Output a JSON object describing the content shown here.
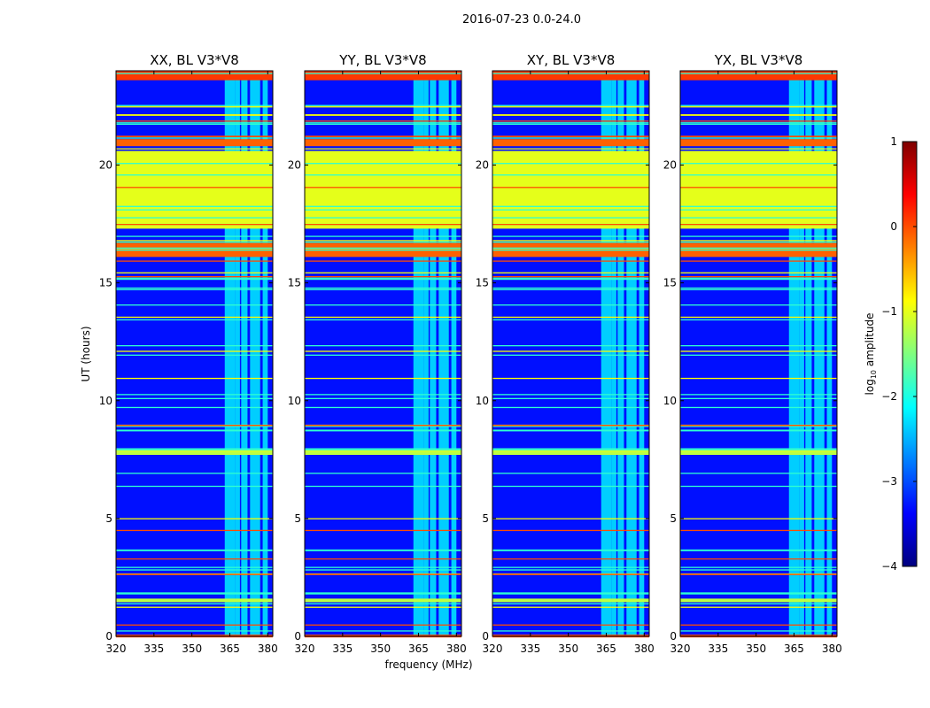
{
  "chart_data": {
    "type": "heatmap",
    "suptitle": "2016-07-23 0.0-24.0",
    "xlabel": "frequency (MHz)",
    "ylabel": "UT (hours)",
    "xlim": [
      320,
      382
    ],
    "ylim": [
      0,
      24
    ],
    "xticks": [
      320,
      335,
      350,
      365,
      380
    ],
    "yticks": [
      0,
      5,
      10,
      15,
      20
    ],
    "panels": [
      {
        "title": "XX, BL V3*V8"
      },
      {
        "title": "YY, BL V3*V8"
      },
      {
        "title": "XY, BL V3*V8"
      },
      {
        "title": "YX, BL V3*V8"
      }
    ],
    "colorbar": {
      "label": "log10 amplitude",
      "label_prefix": "log",
      "label_sub": "10",
      "label_suffix": " amplitude",
      "range": [
        -4,
        1
      ],
      "ticks": [
        -4,
        -3,
        -2,
        -1,
        0,
        1
      ],
      "tick_labels": [
        "−4",
        "−3",
        "−2",
        "−1",
        "0",
        "1"
      ],
      "colormap": "jet"
    },
    "background_log_amp": -3.3,
    "rfi_channels_mhz": [
      [
        363,
        367
      ],
      [
        367,
        369
      ],
      [
        369.5,
        372
      ],
      [
        373,
        377
      ],
      [
        378,
        380
      ]
    ],
    "flat_bands_ut": [
      {
        "from": 17.3,
        "to": 20.6,
        "value": -1.0
      },
      {
        "from": 16.1,
        "to": 16.7,
        "value": -0.1
      },
      {
        "from": 20.8,
        "to": 21.1,
        "value": -0.1
      },
      {
        "from": 23.6,
        "to": 24.0,
        "value": 0.1
      },
      {
        "from": 7.7,
        "to": 7.95,
        "value": -1.2
      },
      {
        "from": 1.45,
        "to": 1.6,
        "value": -1.2
      }
    ]
  }
}
